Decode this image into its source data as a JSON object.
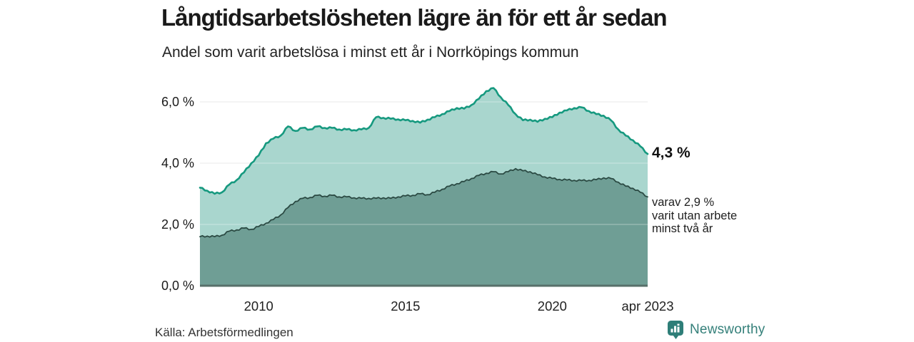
{
  "header": {
    "title": "Långtidsarbetslösheten lägre än för ett år sedan",
    "subtitle": "Andel som varit arbetslösa i minst ett år i Norrköpings kommun"
  },
  "annotations": {
    "latest_total": "4,3 %",
    "latest_sub": "varav 2,9 %\nvarit utan arbete\nminst två år"
  },
  "source": {
    "label": "Källa: Arbetsförmedlingen"
  },
  "branding": {
    "name": "Newsworthy",
    "icon": "newsworthy-bubble-chart-icon",
    "color": "#2e7e78"
  },
  "colors": {
    "background": "#ffffff",
    "grid": "#dcdcdc",
    "axis": "#57706a",
    "title_text": "#1a1a1a",
    "brand_teal": "#35807a"
  },
  "chart_data": {
    "type": "area",
    "title": "Långtidsarbetslösheten lägre än för ett år sedan",
    "subtitle": "Andel som varit arbetslösa i minst ett år i Norrköpings kommun",
    "xlabel": "",
    "ylabel": "",
    "x_unit": "decimal_year_monthly_series",
    "x_start": 2008.0,
    "x_step": 0.25,
    "xlim": [
      2008.0,
      2023.25
    ],
    "ylim": [
      0,
      6.7
    ],
    "grid": true,
    "legend": "none",
    "y_ticks": [
      {
        "label": "0,0 %",
        "value": 0
      },
      {
        "label": "2,0 %",
        "value": 2
      },
      {
        "label": "4,0 %",
        "value": 4
      },
      {
        "label": "6,0 %",
        "value": 6
      }
    ],
    "x_ticks": [
      {
        "label": "2010",
        "value": 2010
      },
      {
        "label": "2015",
        "value": 2015
      },
      {
        "label": "2020",
        "value": 2020
      },
      {
        "label": "apr 2023",
        "value": 2023.25
      }
    ],
    "series": [
      {
        "name": "Arbetslösa minst ett år",
        "end_label": "4,3 %",
        "line_color": "#16997f",
        "fill_color": "#a9d6ce",
        "values": [
          3.2,
          3.1,
          3.0,
          3.05,
          3.3,
          3.45,
          3.7,
          4.0,
          4.25,
          4.65,
          4.8,
          4.9,
          5.2,
          5.05,
          5.15,
          5.1,
          5.2,
          5.15,
          5.15,
          5.1,
          5.1,
          5.08,
          5.1,
          5.15,
          5.5,
          5.48,
          5.45,
          5.43,
          5.4,
          5.38,
          5.32,
          5.42,
          5.5,
          5.6,
          5.7,
          5.8,
          5.78,
          5.9,
          6.1,
          6.35,
          6.45,
          6.15,
          5.9,
          5.6,
          5.4,
          5.42,
          5.35,
          5.45,
          5.5,
          5.65,
          5.72,
          5.8,
          5.82,
          5.7,
          5.6,
          5.55,
          5.4,
          5.1,
          4.9,
          4.75,
          4.55,
          4.3
        ]
      },
      {
        "name": "varav utan arbete minst två år",
        "end_label": "2,9 %",
        "line_color": "#2b4a43",
        "fill_color": "#6f9e95",
        "values": [
          1.6,
          1.62,
          1.6,
          1.65,
          1.78,
          1.82,
          1.88,
          1.84,
          1.93,
          2.04,
          2.16,
          2.31,
          2.55,
          2.75,
          2.85,
          2.88,
          2.95,
          2.92,
          2.95,
          2.9,
          2.9,
          2.87,
          2.85,
          2.85,
          2.85,
          2.87,
          2.85,
          2.9,
          2.93,
          2.95,
          3.0,
          2.97,
          3.05,
          3.15,
          3.25,
          3.33,
          3.4,
          3.5,
          3.6,
          3.67,
          3.72,
          3.65,
          3.72,
          3.82,
          3.75,
          3.72,
          3.62,
          3.55,
          3.5,
          3.47,
          3.45,
          3.44,
          3.43,
          3.44,
          3.46,
          3.52,
          3.5,
          3.38,
          3.25,
          3.18,
          3.05,
          2.9
        ]
      }
    ]
  }
}
